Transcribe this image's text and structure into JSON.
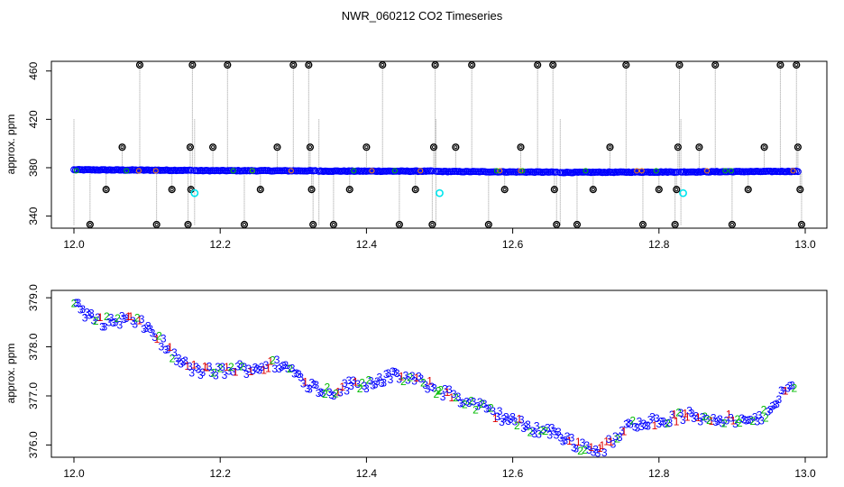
{
  "chart_data": [
    {
      "type": "scatter",
      "title": "NWR_060212  CO2 Timeseries",
      "xlabel": "",
      "ylabel": "approx. ppm",
      "xlim": [
        12.0,
        13.0
      ],
      "ylim": [
        330,
        468
      ],
      "x_ticks": [
        12.0,
        12.2,
        12.4,
        12.6,
        12.8,
        13.0
      ],
      "x_tick_labels": [
        "12.0",
        "12.2",
        "12.4",
        "12.6",
        "12.8",
        "13.0"
      ],
      "y_ticks": [
        340,
        380,
        420,
        460
      ],
      "y_tick_labels": [
        "340",
        "380",
        "420",
        "460"
      ],
      "colors": {
        "main": "#0000ff",
        "outlier": "#000000",
        "cyan": "#00e5ee",
        "spike": "#999999"
      },
      "baseline_segments": [
        {
          "x0": 12.0,
          "x1": 12.16,
          "y0": 378.3,
          "y1": 377.8
        },
        {
          "x0": 12.165,
          "x1": 12.33,
          "y0": 377.6,
          "y1": 377.4
        },
        {
          "x0": 12.335,
          "x1": 12.49,
          "y0": 377.2,
          "y1": 377.1
        },
        {
          "x0": 12.495,
          "x1": 12.66,
          "y0": 376.9,
          "y1": 376.3
        },
        {
          "x0": 12.665,
          "x1": 12.825,
          "y0": 376.1,
          "y1": 376.5
        },
        {
          "x0": 12.83,
          "x1": 12.99,
          "y0": 376.5,
          "y1": 377.0
        }
      ],
      "outliers": [
        {
          "x": 12.022,
          "y": 333
        },
        {
          "x": 12.044,
          "y": 362
        },
        {
          "x": 12.066,
          "y": 397
        },
        {
          "x": 12.09,
          "y": 465
        },
        {
          "x": 12.113,
          "y": 333
        },
        {
          "x": 12.134,
          "y": 362
        },
        {
          "x": 12.156,
          "y": 333
        },
        {
          "x": 12.159,
          "y": 397
        },
        {
          "x": 12.16,
          "y": 362
        },
        {
          "x": 12.162,
          "y": 465
        },
        {
          "x": 12.19,
          "y": 397
        },
        {
          "x": 12.21,
          "y": 465
        },
        {
          "x": 12.233,
          "y": 333
        },
        {
          "x": 12.255,
          "y": 362
        },
        {
          "x": 12.278,
          "y": 397
        },
        {
          "x": 12.3,
          "y": 465
        },
        {
          "x": 12.321,
          "y": 465
        },
        {
          "x": 12.323,
          "y": 397
        },
        {
          "x": 12.325,
          "y": 362
        },
        {
          "x": 12.327,
          "y": 333
        },
        {
          "x": 12.355,
          "y": 333
        },
        {
          "x": 12.377,
          "y": 362
        },
        {
          "x": 12.4,
          "y": 397
        },
        {
          "x": 12.422,
          "y": 465
        },
        {
          "x": 12.445,
          "y": 333
        },
        {
          "x": 12.467,
          "y": 362
        },
        {
          "x": 12.49,
          "y": 333
        },
        {
          "x": 12.492,
          "y": 397
        },
        {
          "x": 12.494,
          "y": 465
        },
        {
          "x": 12.522,
          "y": 397
        },
        {
          "x": 12.544,
          "y": 465
        },
        {
          "x": 12.567,
          "y": 333
        },
        {
          "x": 12.589,
          "y": 362
        },
        {
          "x": 12.611,
          "y": 397
        },
        {
          "x": 12.634,
          "y": 465
        },
        {
          "x": 12.655,
          "y": 465
        },
        {
          "x": 12.657,
          "y": 362
        },
        {
          "x": 12.66,
          "y": 333
        },
        {
          "x": 12.688,
          "y": 333
        },
        {
          "x": 12.71,
          "y": 362
        },
        {
          "x": 12.733,
          "y": 397
        },
        {
          "x": 12.755,
          "y": 465
        },
        {
          "x": 12.778,
          "y": 333
        },
        {
          "x": 12.8,
          "y": 362
        },
        {
          "x": 12.822,
          "y": 333
        },
        {
          "x": 12.824,
          "y": 362
        },
        {
          "x": 12.826,
          "y": 397
        },
        {
          "x": 12.828,
          "y": 465
        },
        {
          "x": 12.855,
          "y": 397
        },
        {
          "x": 12.877,
          "y": 465
        },
        {
          "x": 12.9,
          "y": 333
        },
        {
          "x": 12.922,
          "y": 362
        },
        {
          "x": 12.944,
          "y": 397
        },
        {
          "x": 12.966,
          "y": 465
        },
        {
          "x": 12.988,
          "y": 465
        },
        {
          "x": 12.99,
          "y": 397
        },
        {
          "x": 12.993,
          "y": 362
        },
        {
          "x": 12.995,
          "y": 333
        }
      ],
      "cyan_points": [
        {
          "x": 12.165,
          "y": 359
        },
        {
          "x": 12.5,
          "y": 359
        },
        {
          "x": 12.833,
          "y": 359
        }
      ]
    },
    {
      "type": "scatter",
      "title": "",
      "xlabel": "",
      "ylabel": "approx. ppm",
      "xlim": [
        12.0,
        13.0
      ],
      "ylim": [
        375.75,
        379.15
      ],
      "x_ticks": [
        12.0,
        12.2,
        12.4,
        12.6,
        12.8,
        13.0
      ],
      "x_tick_labels": [
        "12.0",
        "12.2",
        "12.4",
        "12.6",
        "12.8",
        "13.0"
      ],
      "y_ticks": [
        376.0,
        377.0,
        378.0,
        379.0
      ],
      "y_tick_labels": [
        "376.0",
        "377.0",
        "378.0",
        "379.0"
      ],
      "marker_labels": [
        "1",
        "2",
        "3"
      ],
      "marker_colors": [
        "#dd0000",
        "#00bb00",
        "#0000ff"
      ],
      "trend": [
        {
          "x": 12.0,
          "y": 378.95
        },
        {
          "x": 12.02,
          "y": 378.6
        },
        {
          "x": 12.04,
          "y": 378.5
        },
        {
          "x": 12.06,
          "y": 378.55
        },
        {
          "x": 12.08,
          "y": 378.55
        },
        {
          "x": 12.1,
          "y": 378.4
        },
        {
          "x": 12.12,
          "y": 378.1
        },
        {
          "x": 12.14,
          "y": 377.75
        },
        {
          "x": 12.16,
          "y": 377.55
        },
        {
          "x": 12.18,
          "y": 377.5
        },
        {
          "x": 12.2,
          "y": 377.5
        },
        {
          "x": 12.22,
          "y": 377.55
        },
        {
          "x": 12.24,
          "y": 377.55
        },
        {
          "x": 12.26,
          "y": 377.6
        },
        {
          "x": 12.28,
          "y": 377.65
        },
        {
          "x": 12.3,
          "y": 377.5
        },
        {
          "x": 12.32,
          "y": 377.25
        },
        {
          "x": 12.34,
          "y": 377.1
        },
        {
          "x": 12.36,
          "y": 377.1
        },
        {
          "x": 12.38,
          "y": 377.25
        },
        {
          "x": 12.4,
          "y": 377.25
        },
        {
          "x": 12.42,
          "y": 377.35
        },
        {
          "x": 12.44,
          "y": 377.4
        },
        {
          "x": 12.46,
          "y": 377.35
        },
        {
          "x": 12.48,
          "y": 377.25
        },
        {
          "x": 12.5,
          "y": 377.1
        },
        {
          "x": 12.52,
          "y": 377.0
        },
        {
          "x": 12.54,
          "y": 376.85
        },
        {
          "x": 12.56,
          "y": 376.75
        },
        {
          "x": 12.58,
          "y": 376.6
        },
        {
          "x": 12.6,
          "y": 376.5
        },
        {
          "x": 12.62,
          "y": 376.35
        },
        {
          "x": 12.64,
          "y": 376.3
        },
        {
          "x": 12.66,
          "y": 376.25
        },
        {
          "x": 12.68,
          "y": 376.05
        },
        {
          "x": 12.7,
          "y": 375.95
        },
        {
          "x": 12.72,
          "y": 375.9
        },
        {
          "x": 12.74,
          "y": 376.1
        },
        {
          "x": 12.76,
          "y": 376.4
        },
        {
          "x": 12.78,
          "y": 376.5
        },
        {
          "x": 12.8,
          "y": 376.45
        },
        {
          "x": 12.82,
          "y": 376.55
        },
        {
          "x": 12.84,
          "y": 376.6
        },
        {
          "x": 12.86,
          "y": 376.55
        },
        {
          "x": 12.88,
          "y": 376.55
        },
        {
          "x": 12.9,
          "y": 376.5
        },
        {
          "x": 12.92,
          "y": 376.45
        },
        {
          "x": 12.94,
          "y": 376.55
        },
        {
          "x": 12.96,
          "y": 376.9
        },
        {
          "x": 12.97,
          "y": 377.1
        },
        {
          "x": 12.985,
          "y": 377.15
        }
      ]
    }
  ]
}
